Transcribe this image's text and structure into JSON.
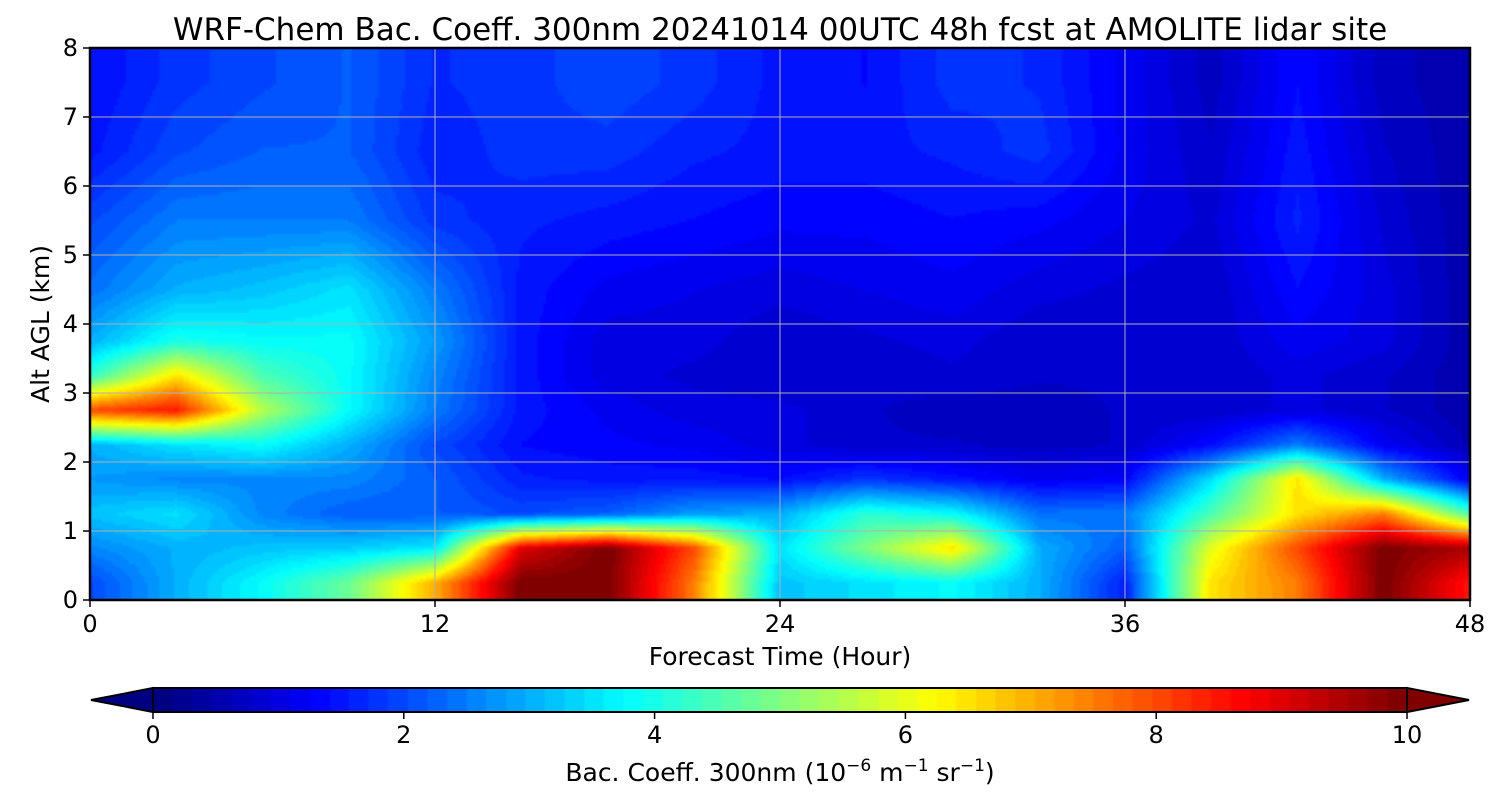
{
  "chart_data": {
    "type": "heatmap",
    "title": "WRF-Chem Bac. Coeff. 300nm  20241014 00UTC 48h fcst at AMOLITE lidar site",
    "xlabel": "Forecast Time (Hour)",
    "ylabel": "Alt AGL (km)",
    "xlim": [
      0,
      48
    ],
    "ylim": [
      0,
      8
    ],
    "x_ticks": [
      "0",
      "12",
      "24",
      "36",
      "48"
    ],
    "y_ticks": [
      "0",
      "1",
      "2",
      "3",
      "4",
      "5",
      "6",
      "7",
      "8"
    ],
    "grid": true,
    "colormap": "jet",
    "colorbar": {
      "label_prefix": "Bac. Coeff. 300nm  (10",
      "label_exp1": "−6",
      "label_mid1": " m",
      "label_exp2": "−1",
      "label_mid2": " sr",
      "label_exp3": "−1",
      "label_suffix": ")",
      "range": [
        0,
        10
      ],
      "ticks": [
        "0",
        "2",
        "4",
        "6",
        "8",
        "10"
      ],
      "extend": "both",
      "orientation": "horizontal"
    },
    "x": [
      0,
      3,
      6,
      9,
      12,
      15,
      18,
      21,
      24,
      27,
      30,
      33,
      36,
      39,
      42,
      45,
      48
    ],
    "y": [
      0.25,
      0.75,
      1.25,
      1.75,
      2.25,
      2.75,
      3.25,
      3.75,
      4.5,
      5.5,
      6.5,
      7.5
    ],
    "z": [
      [
        2.0,
        3.0,
        3.8,
        4.8,
        7.0,
        10.0,
        10.0,
        7.5,
        3.2,
        3.5,
        3.8,
        3.0,
        1.6,
        6.5,
        7.5,
        10.0,
        8.5
      ],
      [
        2.6,
        3.0,
        3.2,
        3.3,
        3.6,
        9.0,
        10.0,
        8.0,
        3.5,
        5.0,
        6.5,
        3.0,
        2.2,
        6.0,
        8.0,
        10.0,
        9.5
      ],
      [
        3.2,
        3.5,
        2.6,
        2.2,
        2.2,
        2.0,
        2.2,
        2.8,
        3.0,
        4.2,
        3.8,
        2.4,
        2.5,
        4.5,
        6.5,
        7.5,
        4.5
      ],
      [
        2.8,
        2.6,
        2.6,
        2.6,
        2.2,
        1.6,
        1.5,
        1.5,
        1.4,
        1.8,
        1.5,
        1.2,
        1.3,
        3.5,
        6.5,
        3.0,
        1.2
      ],
      [
        3.0,
        3.5,
        3.8,
        3.0,
        2.0,
        1.4,
        1.3,
        1.2,
        1.0,
        0.8,
        0.8,
        0.7,
        0.8,
        1.4,
        2.5,
        1.2,
        0.6
      ],
      [
        8.0,
        8.5,
        5.5,
        3.8,
        2.5,
        1.5,
        1.2,
        1.0,
        1.0,
        0.8,
        0.7,
        0.7,
        0.8,
        0.8,
        1.0,
        0.8,
        0.5
      ],
      [
        4.2,
        6.5,
        4.5,
        3.8,
        2.6,
        1.5,
        1.0,
        0.9,
        0.8,
        0.8,
        0.9,
        0.8,
        0.8,
        0.8,
        1.0,
        0.8,
        0.5
      ],
      [
        3.0,
        4.0,
        3.8,
        3.8,
        2.8,
        1.5,
        1.0,
        1.0,
        0.8,
        0.9,
        1.0,
        0.8,
        0.8,
        0.8,
        1.2,
        1.0,
        0.5
      ],
      [
        2.4,
        3.0,
        3.2,
        3.5,
        2.5,
        1.5,
        1.2,
        1.1,
        1.0,
        1.1,
        1.2,
        1.0,
        0.9,
        0.8,
        1.4,
        1.0,
        0.5
      ],
      [
        2.0,
        2.5,
        2.5,
        2.5,
        1.8,
        1.6,
        1.5,
        1.4,
        1.3,
        1.3,
        1.4,
        1.3,
        1.1,
        0.9,
        1.6,
        0.9,
        0.5
      ],
      [
        1.5,
        2.0,
        2.2,
        2.2,
        1.6,
        1.8,
        1.8,
        1.6,
        1.5,
        1.5,
        1.6,
        1.8,
        1.2,
        0.8,
        1.5,
        0.8,
        0.5
      ],
      [
        1.4,
        1.8,
        2.0,
        2.2,
        1.7,
        1.8,
        2.0,
        1.8,
        1.5,
        1.4,
        1.8,
        1.7,
        1.2,
        0.7,
        1.4,
        0.7,
        0.5
      ]
    ]
  }
}
